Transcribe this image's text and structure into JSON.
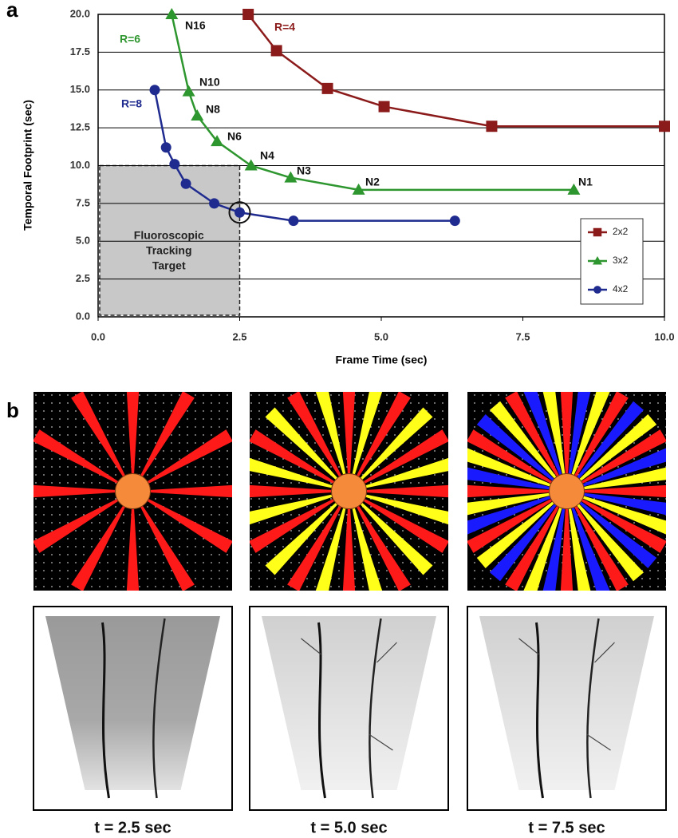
{
  "panel_labels": [
    "a",
    "b"
  ],
  "chart_data": {
    "type": "line",
    "x_label": "Frame Time (sec)",
    "y_label": "Temporal Footprint (sec)",
    "xlim": [
      0,
      10
    ],
    "ylim": [
      0,
      20
    ],
    "xticks": [
      {
        "value": 0,
        "label": "0.0"
      },
      2.5,
      {
        "value": 5,
        "label": "5.0"
      },
      7.5,
      {
        "value": 10,
        "label": "10.0"
      }
    ],
    "yticks": [
      {
        "value": 0,
        "label": "0.0"
      },
      2.5,
      {
        "value": 5,
        "label": "5.0"
      },
      7.5,
      {
        "value": 10,
        "label": "10.0"
      },
      12.5,
      {
        "value": 15,
        "label": "15.0"
      },
      17.5,
      {
        "value": 20,
        "label": "20.0"
      }
    ],
    "grid": "y",
    "legend": "lower right",
    "series": [
      {
        "name": "2x2",
        "color": "#8b1a1a",
        "marker": "square",
        "x": [
          2.65,
          3.15,
          4.05,
          5.05,
          6.95,
          10
        ],
        "values": [
          20,
          17.6,
          15.1,
          13.9,
          12.6,
          12.6
        ]
      },
      {
        "name": "3x2",
        "color": "#2e962e",
        "marker": "triangle",
        "x": [
          1.3,
          1.6,
          1.75,
          2.1,
          2.7,
          3.4,
          4.6,
          8.4
        ],
        "values": [
          20,
          14.9,
          13.3,
          11.6,
          10,
          9.2,
          8.4,
          8.4
        ]
      },
      {
        "name": "4x2",
        "color": "#1f2b8f",
        "marker": "circle",
        "x": [
          1.0,
          1.2,
          1.35,
          1.55,
          2.05,
          2.5,
          3.45,
          6.3
        ],
        "values": [
          15,
          11.2,
          10.1,
          8.8,
          7.5,
          6.9,
          6.35,
          6.35
        ]
      }
    ],
    "annotations": [
      {
        "text": "R=4",
        "color": "#8b1a1a"
      },
      {
        "text": "R=6",
        "color": "#2e962e"
      },
      {
        "text": "R=8",
        "color": "#1f2b8f"
      },
      {
        "text": "N16",
        "color": "#111111"
      },
      {
        "text": "N10",
        "color": "#111111"
      },
      {
        "text": "N8",
        "color": "#111111"
      },
      {
        "text": "N6",
        "color": "#111111"
      },
      {
        "text": "N4",
        "color": "#111111"
      },
      {
        "text": "N3",
        "color": "#111111"
      },
      {
        "text": "N2",
        "color": "#111111"
      },
      {
        "text": "N1",
        "color": "#111111"
      }
    ],
    "target": {
      "label": [
        "Fluoroscopic",
        "Tracking",
        "Target"
      ],
      "x": [
        0,
        2.5
      ],
      "y": [
        0,
        10
      ]
    }
  },
  "captions": [
    "t = 2.5 sec",
    "t = 5.0 sec",
    "t = 7.5 sec"
  ]
}
